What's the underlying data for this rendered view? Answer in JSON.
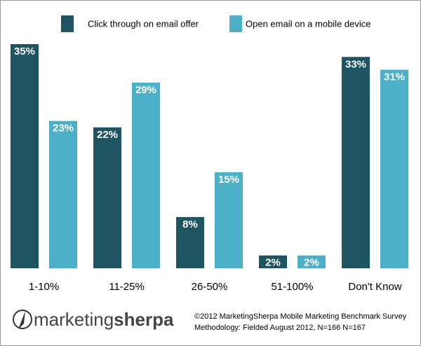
{
  "chart_data": {
    "type": "bar",
    "categories": [
      "1-10%",
      "11-25%",
      "26-50%",
      "51-100%",
      "Don't Know"
    ],
    "series": [
      {
        "name": "Click through on email offer",
        "color": "#1f5563",
        "values": [
          35,
          22,
          8,
          2,
          33
        ],
        "value_labels": [
          "35%",
          "22%",
          "8%",
          "2%",
          "33%"
        ]
      },
      {
        "name": "Open email on a mobile device",
        "color": "#4bb0c8",
        "values": [
          23,
          29,
          15,
          2,
          31
        ],
        "value_labels": [
          "23%",
          "29%",
          "15%",
          "2%",
          "31%"
        ]
      }
    ],
    "logo": [
      "marketing",
      "sherpa"
    ],
    "source": [
      "©2012 MarketingSherpa Mobile Marketing Benchmark Survey",
      "Methodology: Fielded August 2012, N=166 N=167"
    ]
  }
}
